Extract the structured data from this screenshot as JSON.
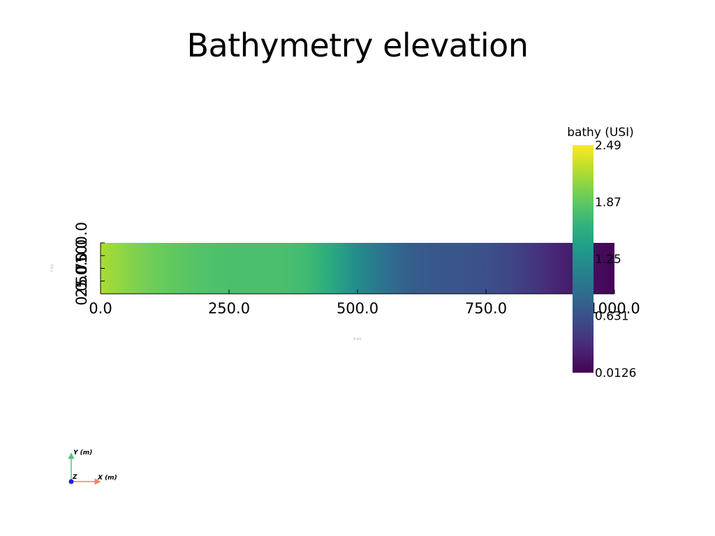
{
  "chart_data": {
    "type": "heatmap",
    "title": "Bathymetry elevation",
    "xlabel": "X (m)",
    "ylabel": "Y (m)",
    "xlim": [
      0,
      1000
    ],
    "ylim": [
      0,
      100
    ],
    "x_ticks": [
      "0.0",
      "250.0",
      "500.0",
      "750.0",
      "1000.0"
    ],
    "y_ticks": [
      "0.0",
      "25.0",
      "50.0",
      "75.0",
      "100.0"
    ],
    "colorbar": {
      "title": "bathy  (USI)",
      "colormap": "viridis",
      "range": [
        0.0126,
        2.49
      ],
      "tick_labels": [
        "2.49",
        "1.87",
        "1.25",
        "0.631",
        "0.0126"
      ]
    },
    "profile_x": [
      0,
      50,
      100,
      150,
      200,
      250,
      300,
      350,
      400,
      450,
      500,
      550,
      600,
      650,
      700,
      750,
      800,
      850,
      900,
      950,
      1000
    ],
    "profile_value": [
      2.18,
      2.05,
      1.94,
      1.86,
      1.8,
      1.77,
      1.77,
      1.77,
      1.72,
      1.52,
      1.2,
      0.95,
      0.75,
      0.68,
      0.66,
      0.62,
      0.52,
      0.38,
      0.24,
      0.12,
      0.04
    ],
    "orientation_axes": {
      "x": "X (m)",
      "y": "Y (m)",
      "z": "Z"
    }
  }
}
